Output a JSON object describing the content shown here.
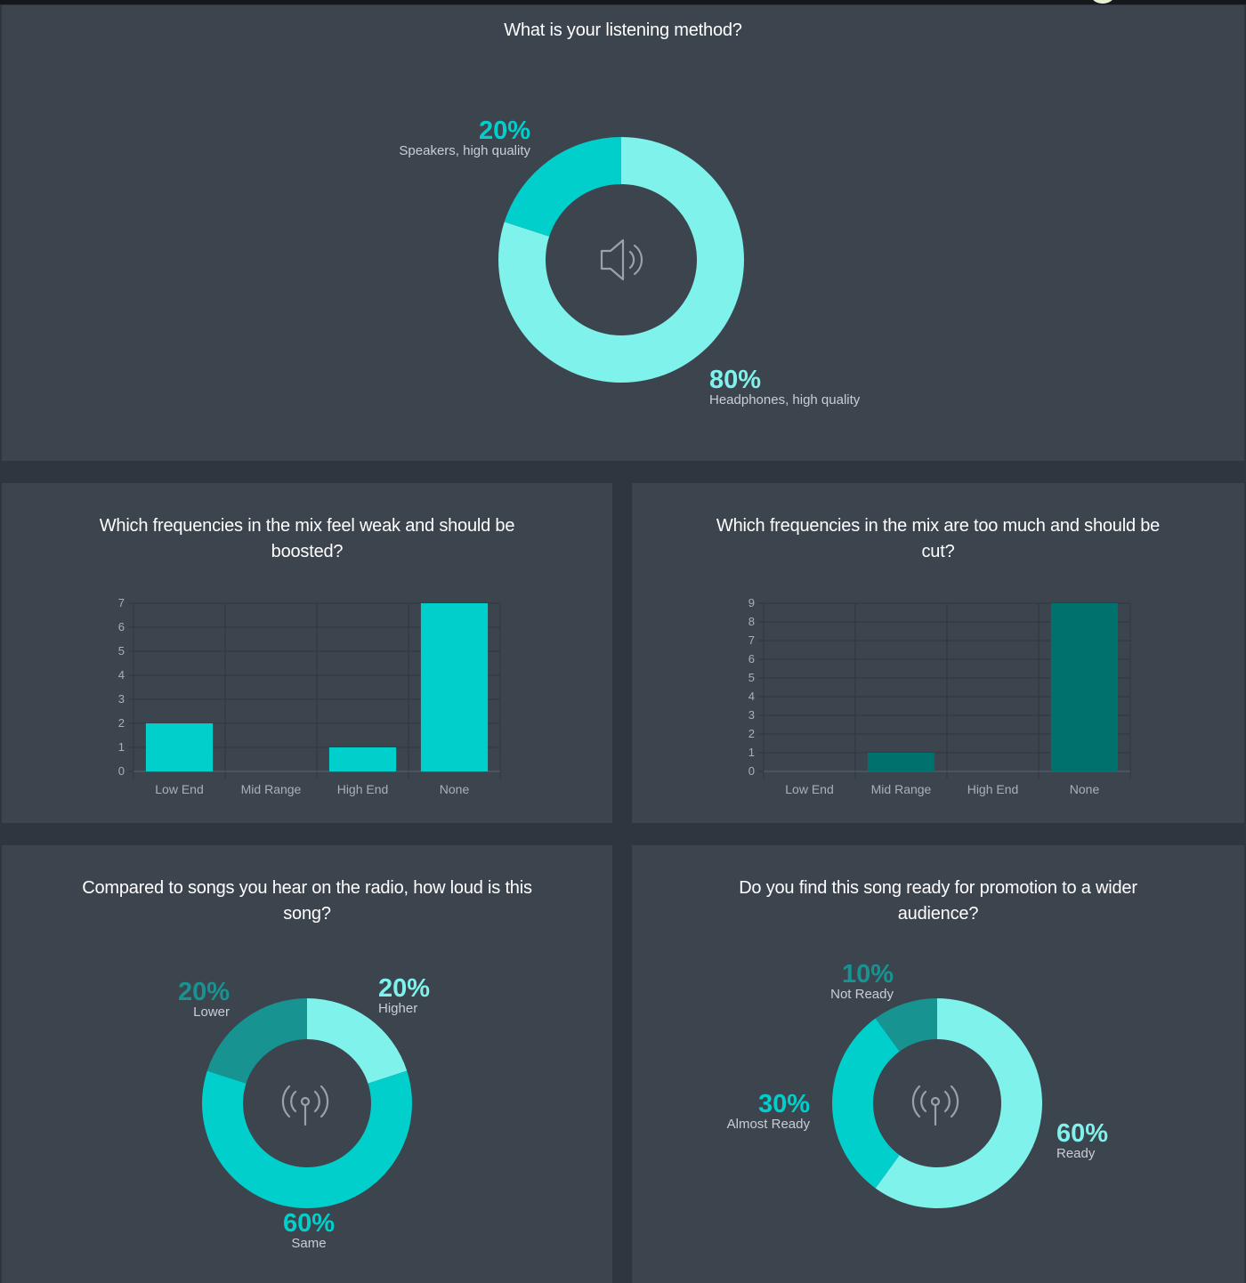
{
  "colors": {
    "light": "#7ff2ec",
    "mid": "#00cfcb",
    "dark": "#179491",
    "cut_bar": "#00716d",
    "panel": "#3c444e",
    "background": "#30363f",
    "grid": "#30363f",
    "icon": "#9aa1ab"
  },
  "icons": {
    "listening": "speaker-icon",
    "loudness": "radio-tower-icon",
    "promotion": "radio-tower-icon"
  },
  "chart_data": [
    {
      "type": "pie",
      "title": "What is your listening method?",
      "slices": [
        {
          "label": "Headphones, high quality",
          "percent_label": "80%",
          "value": 80,
          "color": "#7ff2ec"
        },
        {
          "label": "Speakers, high quality",
          "percent_label": "20%",
          "value": 20,
          "color": "#00cfcb"
        }
      ]
    },
    {
      "type": "bar",
      "title": "Which frequencies in the mix feel weak and should be boosted?",
      "categories": [
        "Low End",
        "Mid Range",
        "High End",
        "None"
      ],
      "values": [
        2,
        0,
        1,
        7
      ],
      "ylim": [
        0,
        7
      ],
      "yticks": [
        0,
        1,
        2,
        3,
        4,
        5,
        6,
        7
      ],
      "grid": true,
      "color": "#00cfcb"
    },
    {
      "type": "bar",
      "title": "Which frequencies in the mix are too much and should be cut?",
      "categories": [
        "Low End",
        "Mid Range",
        "High End",
        "None"
      ],
      "values": [
        0,
        1,
        0,
        9
      ],
      "ylim": [
        0,
        9
      ],
      "yticks": [
        0,
        1,
        2,
        3,
        4,
        5,
        6,
        7,
        8,
        9
      ],
      "grid": true,
      "color": "#00716d"
    },
    {
      "type": "pie",
      "title": "Compared to songs you hear on the radio, how loud is this song?",
      "slices": [
        {
          "label": "Higher",
          "percent_label": "20%",
          "value": 20,
          "color": "#7ff2ec"
        },
        {
          "label": "Same",
          "percent_label": "60%",
          "value": 60,
          "color": "#00cfcb"
        },
        {
          "label": "Lower",
          "percent_label": "20%",
          "value": 20,
          "color": "#179491"
        }
      ]
    },
    {
      "type": "pie",
      "title": "Do you find this song ready for promotion to a wider audience?",
      "slices": [
        {
          "label": "Ready",
          "percent_label": "60%",
          "value": 60,
          "color": "#7ff2ec"
        },
        {
          "label": "Almost Ready",
          "percent_label": "30%",
          "value": 30,
          "color": "#00cfcb"
        },
        {
          "label": "Not Ready",
          "percent_label": "10%",
          "value": 10,
          "color": "#179491"
        }
      ]
    }
  ]
}
